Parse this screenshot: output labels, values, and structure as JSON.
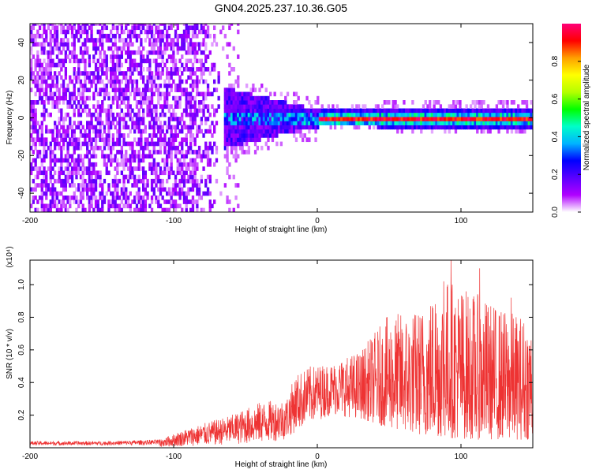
{
  "title": "GN04.2025.237.10.36.G05",
  "chart_data": [
    {
      "type": "heatmap",
      "name": "spectrogram",
      "xlabel": "Height of straight line (km)",
      "ylabel": "Frequency (Hz)",
      "xlim": [
        -200,
        150
      ],
      "ylim": [
        -50,
        50
      ],
      "xticks": [
        -200,
        -100,
        0,
        100
      ],
      "xtick_labels": [
        "-200",
        "-100",
        "0",
        "100"
      ],
      "yticks": [
        -40,
        -20,
        0,
        20,
        40
      ],
      "ytick_labels": [
        "-40",
        "-20",
        "0",
        "20",
        "40"
      ],
      "colorbar": {
        "label": "Normalized spectral amplitude",
        "range": [
          0,
          1
        ],
        "ticks": [
          0.0,
          0.2,
          0.4,
          0.6,
          0.8
        ],
        "tick_labels": [
          "0.0",
          "0.2",
          "0.4",
          "0.6",
          "0.8"
        ],
        "colors": [
          "#ffffff",
          "#b000ff",
          "#5a00ff",
          "#0000ff",
          "#00b4ff",
          "#00ffc8",
          "#00ff00",
          "#b4ff00",
          "#ffff00",
          "#ffa000",
          "#ff0000",
          "#ff0078"
        ]
      },
      "regions": [
        {
          "x_range": [
            -200,
            -65
          ],
          "freq_range": [
            -50,
            50
          ],
          "amplitude": 0.1,
          "description": "broadband noise"
        },
        {
          "x_range": [
            -65,
            0
          ],
          "freq_range": [
            -12,
            12
          ],
          "amplitude": 0.3
        },
        {
          "x_range": [
            0,
            150
          ],
          "freq_center": 0,
          "amplitude": 0.95
        }
      ]
    },
    {
      "type": "line",
      "name": "snr",
      "xlabel": "Height of straight line (km)",
      "ylabel": "SNR (10 * v/v)",
      "ylabel_multiplier": "(x10⁴)",
      "xlim": [
        -200,
        150
      ],
      "ylim": [
        0,
        1.15
      ],
      "xticks": [
        -200,
        -100,
        0,
        100
      ],
      "xtick_labels": [
        "-200",
        "-100",
        "0",
        "100"
      ],
      "yticks": [
        0.2,
        0.4,
        0.6,
        0.8,
        1.0
      ],
      "ytick_labels": [
        "0.2",
        "0.4",
        "0.6",
        "0.8",
        "1.0"
      ],
      "color": "#ee3333",
      "envelope": [
        {
          "x": -200,
          "lo": 0.005,
          "hi": 0.04
        },
        {
          "x": -150,
          "lo": 0.005,
          "hi": 0.04
        },
        {
          "x": -110,
          "lo": 0.005,
          "hi": 0.05
        },
        {
          "x": -90,
          "lo": 0.01,
          "hi": 0.12
        },
        {
          "x": -60,
          "lo": 0.02,
          "hi": 0.2
        },
        {
          "x": -40,
          "lo": 0.03,
          "hi": 0.28
        },
        {
          "x": -22,
          "lo": 0.05,
          "hi": 0.3
        },
        {
          "x": -15,
          "lo": 0.1,
          "hi": 0.45
        },
        {
          "x": -5,
          "lo": 0.15,
          "hi": 0.5
        },
        {
          "x": 10,
          "lo": 0.2,
          "hi": 0.52
        },
        {
          "x": 30,
          "lo": 0.18,
          "hi": 0.6
        },
        {
          "x": 50,
          "lo": 0.12,
          "hi": 0.82
        },
        {
          "x": 70,
          "lo": 0.08,
          "hi": 0.85
        },
        {
          "x": 90,
          "lo": 0.06,
          "hi": 1.05
        },
        {
          "x": 110,
          "lo": 0.05,
          "hi": 0.95
        },
        {
          "x": 130,
          "lo": 0.05,
          "hi": 0.85
        },
        {
          "x": 150,
          "lo": 0.05,
          "hi": 0.8
        }
      ],
      "peaks": [
        {
          "x": 93,
          "y": 1.15
        },
        {
          "x": 113,
          "y": 1.1
        },
        {
          "x": 88,
          "y": 1.02
        },
        {
          "x": 82,
          "y": 0.88
        },
        {
          "x": 135,
          "y": 0.92
        }
      ]
    }
  ]
}
